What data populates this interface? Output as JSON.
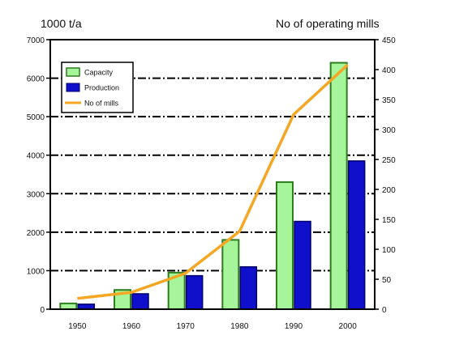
{
  "chart_data": {
    "type": "bar",
    "left_axis_label": "1000 t/a",
    "right_axis_label": "No of operating mills",
    "categories": [
      "1950",
      "1960",
      "1970",
      "1980",
      "1990",
      "2000"
    ],
    "series": [
      {
        "name": "Capacity",
        "axis": "left",
        "kind": "bar",
        "color": "#a6f59a",
        "border": "#2e7d1e",
        "values": [
          150,
          500,
          950,
          1800,
          3300,
          6400
        ]
      },
      {
        "name": "Production",
        "axis": "left",
        "kind": "bar",
        "color": "#1010cc",
        "border": "#00006a",
        "values": [
          130,
          400,
          870,
          1100,
          2280,
          3850
        ]
      },
      {
        "name": "No of mills",
        "axis": "right",
        "kind": "line",
        "color": "#f5a623",
        "values": [
          18,
          28,
          60,
          130,
          325,
          408
        ]
      }
    ],
    "left_ylim": [
      0,
      7000
    ],
    "left_ticks": [
      0,
      1000,
      2000,
      3000,
      4000,
      5000,
      6000,
      7000
    ],
    "right_ylim": [
      0,
      450
    ],
    "right_ticks": [
      0,
      50,
      100,
      150,
      200,
      250,
      300,
      350,
      400,
      450
    ],
    "grid": "horizontal dash-dot lines at left-axis ticks",
    "legend_position": "top-left"
  }
}
